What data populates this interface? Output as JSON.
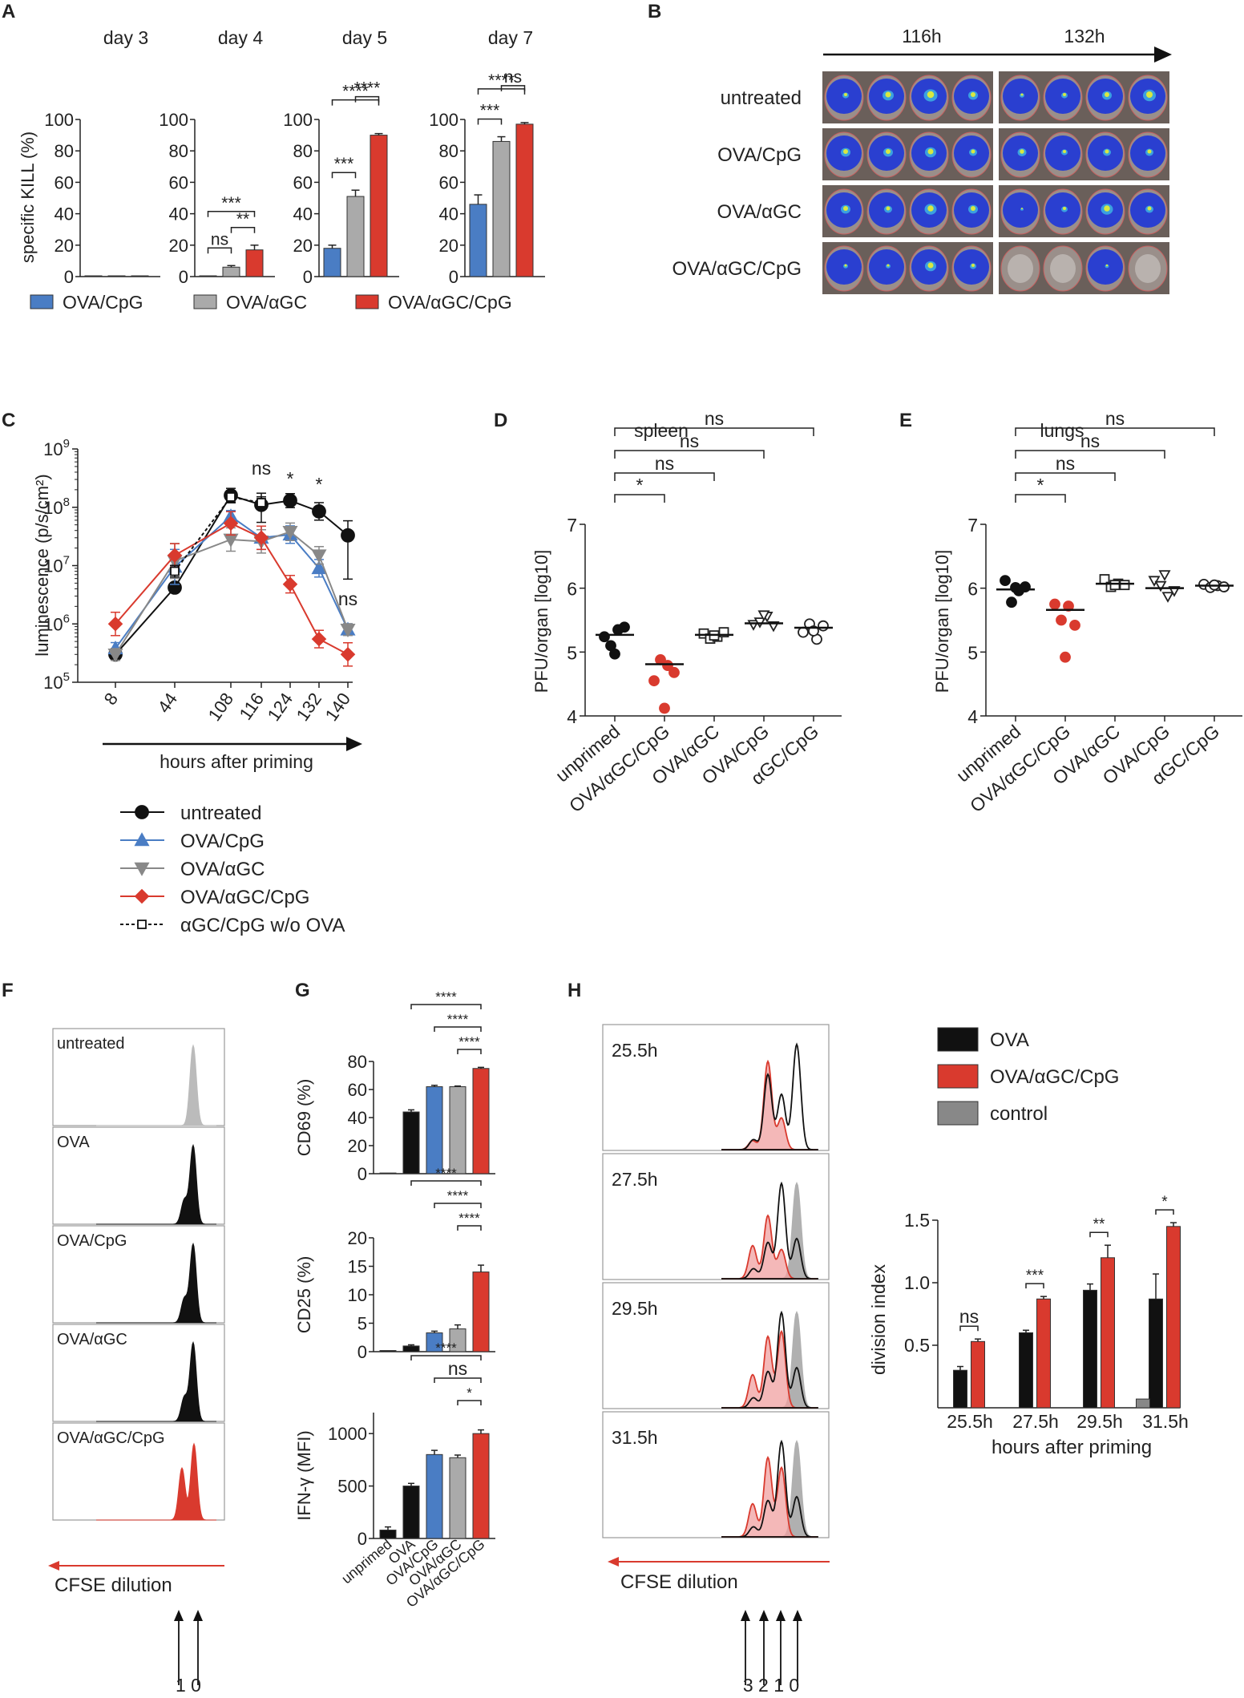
{
  "colors": {
    "blue": "#4a7dc4",
    "gray": "#aaaaaa",
    "red": "#d93a2e",
    "black": "#111111",
    "darkgray": "#888888",
    "pinkfill": "#f0b0b0"
  },
  "panel_labels": [
    "A",
    "B",
    "C",
    "D",
    "E",
    "F",
    "G",
    "H"
  ],
  "chart_data": [
    {
      "id": "A",
      "type": "bar",
      "ylabel": "specific KILL (%)",
      "ylim": [
        0,
        100
      ],
      "yticks": [
        "0",
        "20",
        "40",
        "60",
        "80",
        "100"
      ],
      "series_names": [
        "OVA/CpG",
        "OVA/αGC",
        "OVA/αGC/CpG"
      ],
      "legend": [
        "OVA/CpG",
        "OVA/αGC",
        "OVA/αGC/CpG"
      ],
      "groups": [
        {
          "title": "day 3",
          "values": [
            0.5,
            0.5,
            0.5
          ],
          "errors": [
            0,
            0,
            0
          ],
          "sig": []
        },
        {
          "title": "day 4",
          "values": [
            0.5,
            6,
            17
          ],
          "errors": [
            0,
            1,
            3
          ],
          "sig": [
            {
              "a": 1,
              "b": 2,
              "label": "**"
            },
            {
              "a": 0,
              "b": 1,
              "label": "ns"
            },
            {
              "a": 0,
              "b": 2,
              "label": "***"
            }
          ]
        },
        {
          "title": "day 5",
          "values": [
            18,
            51,
            90
          ],
          "errors": [
            2,
            4,
            1
          ],
          "sig": [
            {
              "a": 0,
              "b": 1,
              "label": "***"
            },
            {
              "a": 1,
              "b": 2,
              "label": "****"
            },
            {
              "a": 0,
              "b": 2,
              "label": "****"
            }
          ]
        },
        {
          "title": "day 7",
          "values": [
            46,
            86,
            97
          ],
          "errors": [
            6,
            3,
            1
          ],
          "sig": [
            {
              "a": 0,
              "b": 1,
              "label": "***"
            },
            {
              "a": 1,
              "b": 2,
              "label": "ns"
            },
            {
              "a": 0,
              "b": 2,
              "label": "****"
            }
          ]
        }
      ]
    },
    {
      "id": "C",
      "type": "line",
      "ylabel": "luminescence (p/s/cm²)",
      "xlabel": "hours after priming",
      "yscale": "log",
      "ylim_exp": [
        5,
        9
      ],
      "ytick_base": "10",
      "ytick_exps": [
        "5",
        "6",
        "7",
        "8",
        "9"
      ],
      "x": [
        8,
        44,
        108,
        116,
        124,
        132,
        140
      ],
      "xticks": [
        "8",
        "44",
        "108",
        "116",
        "124",
        "132",
        "140"
      ],
      "series": [
        {
          "name": "untreated",
          "color": "#111111",
          "marker": "circle",
          "dash": false,
          "values": [
            300000.0,
            4200000.0,
            160000000.0,
            110000000.0,
            130000000.0,
            85000000.0,
            33000000.0
          ],
          "err_lo": [
            0.1,
            0.08,
            0.12,
            0.3,
            0.12,
            0.15,
            0.75
          ],
          "err_hi": [
            0.1,
            0.08,
            0.12,
            0.2,
            0.12,
            0.15,
            0.25
          ]
        },
        {
          "name": "OVA/CpG",
          "color": "#4a7dc4",
          "marker": "triangle-up",
          "dash": false,
          "values": [
            380000.0,
            9500000.0,
            70000000.0,
            30000000.0,
            34000000.0,
            9000000.0,
            800000.0
          ],
          "err_lo": [
            0.1,
            0.3,
            0.1,
            0.2,
            0.15,
            0.15,
            0.1
          ],
          "err_hi": [
            0.1,
            0.3,
            0.1,
            0.2,
            0.15,
            0.15,
            0.1
          ]
        },
        {
          "name": "OVA/αGC",
          "color": "#888888",
          "marker": "triangle-down",
          "dash": false,
          "values": [
            300000.0,
            12000000.0,
            28000000.0,
            26000000.0,
            38000000.0,
            15000000.0,
            800000.0
          ],
          "err_lo": [
            0.1,
            0.3,
            0.2,
            0.2,
            0.15,
            0.15,
            0.1
          ],
          "err_hi": [
            0.1,
            0.3,
            0.2,
            0.2,
            0.15,
            0.15,
            0.1
          ]
        },
        {
          "name": "OVA/αGC/CpG",
          "color": "#d93a2e",
          "marker": "diamond",
          "dash": false,
          "values": [
            1000000.0,
            15000000.0,
            53000000.0,
            30000000.0,
            4800000.0,
            550000.0,
            300000.0
          ],
          "err_lo": [
            0.2,
            0.2,
            0.2,
            0.2,
            0.15,
            0.15,
            0.2
          ],
          "err_hi": [
            0.2,
            0.2,
            0.2,
            0.2,
            0.15,
            0.15,
            0.2
          ]
        },
        {
          "name": "αGC/CpG w/o OVA",
          "color": "#111111",
          "marker": "square",
          "dash": true,
          "values": [
            null,
            8000000.0,
            150000000.0,
            120000000.0,
            null,
            null,
            null
          ],
          "err_lo": [
            0,
            0.1,
            0.1,
            0.1,
            0,
            0,
            0
          ],
          "err_hi": [
            0,
            0.1,
            0.1,
            0.1,
            0,
            0,
            0
          ]
        }
      ],
      "annotations": [
        {
          "x": 116,
          "label": "ns"
        },
        {
          "x": 124,
          "label": "*"
        },
        {
          "x": 132,
          "label": "*"
        },
        {
          "x": 140,
          "label": "ns"
        }
      ]
    },
    {
      "id": "D",
      "type": "scatter",
      "title": "spleen",
      "ylabel": "PFU/organ [log10]",
      "ylim": [
        4,
        7
      ],
      "yticks": [
        "4",
        "5",
        "6",
        "7"
      ],
      "categories": [
        "unprimed",
        "OVA/αGC/CpG",
        "OVA/αGC",
        "OVA/CpG",
        "αGC/CpG"
      ],
      "medians": [
        5.27,
        4.81,
        5.27,
        5.45,
        5.38
      ],
      "points": [
        [
          5.24,
          5.1,
          5.35,
          5.39,
          4.97
        ],
        [
          4.55,
          4.88,
          4.79,
          4.68,
          4.12
        ],
        [
          5.29,
          5.21,
          5.24,
          5.31,
          5.26
        ],
        [
          5.43,
          5.47,
          5.56,
          5.41,
          5.58
        ],
        [
          5.31,
          5.44,
          5.2,
          5.41,
          5.33
        ]
      ],
      "styles": [
        "filled-black",
        "filled-red",
        "open-square",
        "open-triangle-down",
        "open-circle"
      ],
      "sig": [
        {
          "a": 0,
          "b": 1,
          "label": "*"
        },
        {
          "a": 0,
          "b": 2,
          "label": "ns"
        },
        {
          "a": 0,
          "b": 3,
          "label": "ns"
        },
        {
          "a": 0,
          "b": 4,
          "label": "ns"
        }
      ]
    },
    {
      "id": "E",
      "type": "scatter",
      "title": "lungs",
      "ylabel": "PFU/organ [log10]",
      "ylim": [
        4,
        7
      ],
      "yticks": [
        "4",
        "5",
        "6",
        "7"
      ],
      "categories": [
        "unprimed",
        "OVA/αGC/CpG",
        "OVA/αGC",
        "OVA/CpG",
        "αGC/CpG"
      ],
      "medians": [
        5.98,
        5.66,
        6.07,
        6.0,
        6.04
      ],
      "points": [
        [
          6.12,
          5.78,
          5.96,
          6.02,
          6.01
        ],
        [
          5.75,
          5.5,
          5.72,
          5.42,
          4.92
        ],
        [
          6.14,
          6.02,
          6.07,
          6.05,
          6.05
        ],
        [
          6.12,
          6.04,
          5.87,
          5.96,
          6.21
        ],
        [
          6.06,
          6.01,
          6.04,
          6.02,
          6.05
        ]
      ],
      "styles": [
        "filled-black",
        "filled-red",
        "open-square",
        "open-triangle-down",
        "open-circle"
      ],
      "sig": [
        {
          "a": 0,
          "b": 1,
          "label": "*"
        },
        {
          "a": 0,
          "b": 2,
          "label": "ns"
        },
        {
          "a": 0,
          "b": 3,
          "label": "ns"
        },
        {
          "a": 0,
          "b": 4,
          "label": "ns"
        }
      ]
    },
    {
      "id": "G",
      "type": "bar",
      "categories": [
        "unprimed",
        "OVA",
        "OVA/CpG",
        "OVA/αGC",
        "OVA/αGC/CpG"
      ],
      "bar_colors": [
        "#111111",
        "#111111",
        "#4a7dc4",
        "#aaaaaa",
        "#d93a2e"
      ],
      "subplots": [
        {
          "ylabel": "CD69 (%)",
          "ylim": [
            0,
            80
          ],
          "yticks": [
            "0",
            "20",
            "40",
            "60",
            "80"
          ],
          "values": [
            0.5,
            44,
            62,
            62,
            75
          ],
          "errors": [
            0,
            1.5,
            1,
            0.5,
            0.8
          ],
          "sig": [
            {
              "label": "****",
              "from": 1
            },
            {
              "label": "****",
              "from": 2
            },
            {
              "label": "****",
              "from": 3
            }
          ]
        },
        {
          "ylabel": "CD25 (%)",
          "ylim": [
            0,
            20
          ],
          "yticks": [
            "0",
            "5",
            "10",
            "15",
            "20"
          ],
          "values": [
            0.2,
            1,
            3.3,
            4,
            14
          ],
          "errors": [
            0,
            0.2,
            0.3,
            0.7,
            1.2
          ],
          "sig": [
            {
              "label": "****",
              "from": 1
            },
            {
              "label": "****",
              "from": 2
            },
            {
              "label": "****",
              "from": 3
            }
          ]
        },
        {
          "ylabel": "IFN-γ (MFI)",
          "ylim": [
            0,
            1200
          ],
          "yticks": [
            "0",
            "500",
            "1000"
          ],
          "values": [
            80,
            500,
            800,
            770,
            1000
          ],
          "errors": [
            30,
            25,
            40,
            25,
            35
          ],
          "sig": [
            {
              "label": "****",
              "from": 1
            },
            {
              "label": "ns",
              "from": 2
            },
            {
              "label": "*",
              "from": 3
            }
          ]
        }
      ]
    },
    {
      "id": "H-bar",
      "type": "bar",
      "ylabel": "division index",
      "xlabel": "hours after priming",
      "ylim": [
        0,
        1.5
      ],
      "yticks": [
        "0.5",
        "1.0",
        "1.5"
      ],
      "categories": [
        "25.5h",
        "27.5h",
        "29.5h",
        "31.5h"
      ],
      "series": [
        {
          "name": "OVA",
          "color": "#111111",
          "values": [
            0.3,
            0.6,
            0.94,
            0.87
          ],
          "errors": [
            0.03,
            0.02,
            0.05,
            0.2
          ]
        },
        {
          "name": "OVA/αGC/CpG",
          "color": "#d93a2e",
          "values": [
            0.53,
            0.87,
            1.2,
            1.45
          ],
          "errors": [
            0.02,
            0.02,
            0.1,
            0.03
          ]
        },
        {
          "name": "control",
          "color": "#888888",
          "values": [
            null,
            null,
            null,
            0.07
          ],
          "errors": [
            0,
            0,
            0,
            0
          ]
        }
      ],
      "legend": [
        "OVA",
        "OVA/αGC/CpG",
        "control"
      ],
      "sig": [
        "ns",
        "***",
        "**",
        "*"
      ]
    }
  ],
  "panelB": {
    "timepoints": [
      "116h",
      "132h"
    ],
    "rows": [
      "untreated",
      "OVA/CpG",
      "OVA/αGC",
      "OVA/αGC/CpG"
    ]
  },
  "panelF": {
    "histograms": [
      "untreated",
      "OVA",
      "OVA/CpG",
      "OVA/αGC",
      "OVA/αGC/CpG"
    ],
    "axis_label": "CFSE dilution",
    "arrow_labels": "1 0"
  },
  "panelH": {
    "histograms": [
      "25.5h",
      "27.5h",
      "29.5h",
      "31.5h"
    ],
    "axis_label": "CFSE dilution",
    "arrow_labels": "3 2 1 0"
  }
}
